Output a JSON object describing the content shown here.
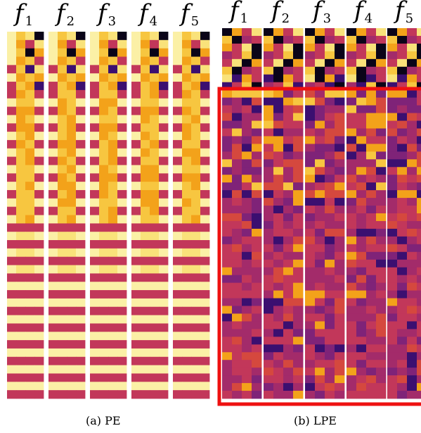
{
  "panels": [
    {
      "id": "pe",
      "caption": "(a) PE",
      "features": [
        {
          "base": "f",
          "sub": "1"
        },
        {
          "base": "f",
          "sub": "2"
        },
        {
          "base": "f",
          "sub": "3"
        },
        {
          "base": "f",
          "sub": "4"
        },
        {
          "base": "f",
          "sub": "5"
        }
      ]
    },
    {
      "id": "lpe",
      "caption": "(b) LPE",
      "features": [
        {
          "base": "f",
          "sub": "1"
        },
        {
          "base": "f",
          "sub": "2"
        },
        {
          "base": "f",
          "sub": "3"
        },
        {
          "base": "f",
          "sub": "4"
        },
        {
          "base": "f",
          "sub": "5"
        }
      ],
      "highlight_color": "#ee1111"
    }
  ],
  "colors": {
    "cream": "#fbf0a6",
    "pale_yellow": "#f9e27a",
    "yellow": "#f7c640",
    "orange": "#f3a21a",
    "crimson": "#c2375a",
    "dark_purple": "#3b0f70",
    "black": "#0a0418",
    "magenta": "#a32b6a",
    "red_orange": "#d5483e",
    "plum": "#7f2378"
  }
}
